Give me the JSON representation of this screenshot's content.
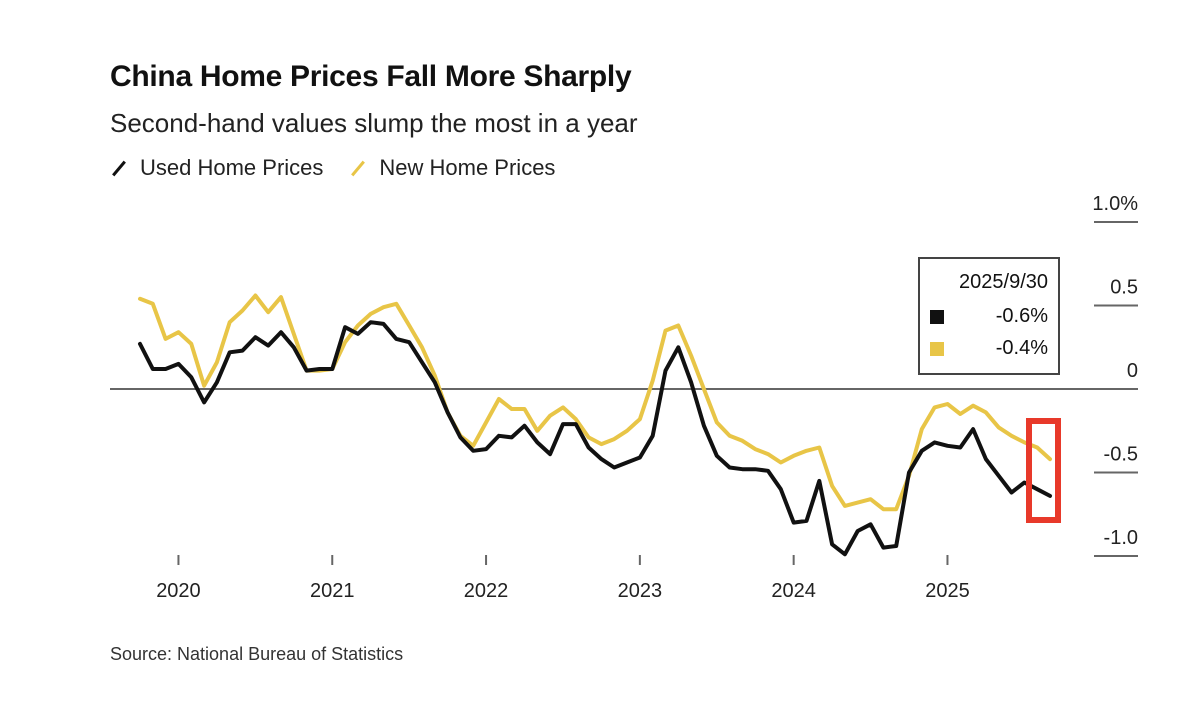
{
  "chart_data": {
    "type": "line",
    "title": "China Home Prices Fall More Sharply",
    "subtitle": "Second-hand values slump the most in a year",
    "source": "Source: National Bureau of Statistics",
    "x_start": "2019-10",
    "x_end": "2025-09",
    "x_frequency": "monthly",
    "x_tick_labels": [
      "2020",
      "2021",
      "2022",
      "2023",
      "2024",
      "2025"
    ],
    "y_tick_labels": [
      "1.0%",
      "0.5",
      "0",
      "-0.5",
      "-1.0"
    ],
    "y_ticks": [
      1.0,
      0.5,
      0,
      -0.5,
      -1.0
    ],
    "ylim": [
      -1.0,
      1.0
    ],
    "y_axis_side": "right",
    "grid": false,
    "legend_placement": "top-left",
    "series": [
      {
        "name": "Used Home Prices",
        "color": "#111111",
        "values": [
          0.27,
          0.12,
          0.12,
          0.15,
          0.07,
          -0.08,
          0.04,
          0.22,
          0.23,
          0.31,
          0.26,
          0.34,
          0.25,
          0.11,
          0.12,
          0.12,
          0.37,
          0.33,
          0.4,
          0.39,
          0.3,
          0.28,
          0.16,
          0.04,
          -0.14,
          -0.29,
          -0.37,
          -0.36,
          -0.28,
          -0.29,
          -0.22,
          -0.32,
          -0.39,
          -0.21,
          -0.21,
          -0.35,
          -0.42,
          -0.47,
          -0.44,
          -0.41,
          -0.28,
          0.11,
          0.25,
          0.04,
          -0.22,
          -0.4,
          -0.47,
          -0.48,
          -0.48,
          -0.49,
          -0.6,
          -0.8,
          -0.79,
          -0.55,
          -0.93,
          -0.99,
          -0.85,
          -0.81,
          -0.95,
          -0.94,
          -0.5,
          -0.37,
          -0.32,
          -0.34,
          -0.35,
          -0.24,
          -0.42,
          -0.52,
          -0.62,
          -0.56,
          -0.6,
          -0.64
        ]
      },
      {
        "name": "New Home Prices",
        "color": "#e8c547",
        "values": [
          0.54,
          0.51,
          0.3,
          0.34,
          0.27,
          0.02,
          0.16,
          0.4,
          0.47,
          0.56,
          0.46,
          0.55,
          0.33,
          0.11,
          0.11,
          0.12,
          0.28,
          0.38,
          0.45,
          0.49,
          0.51,
          0.38,
          0.25,
          0.08,
          -0.14,
          -0.28,
          -0.34,
          -0.2,
          -0.06,
          -0.12,
          -0.12,
          -0.25,
          -0.16,
          -0.11,
          -0.18,
          -0.29,
          -0.33,
          -0.3,
          -0.25,
          -0.18,
          0.05,
          0.35,
          0.38,
          0.2,
          0.0,
          -0.2,
          -0.28,
          -0.31,
          -0.36,
          -0.39,
          -0.44,
          -0.4,
          -0.37,
          -0.35,
          -0.58,
          -0.7,
          -0.68,
          -0.66,
          -0.72,
          -0.72,
          -0.52,
          -0.24,
          -0.11,
          -0.09,
          -0.15,
          -0.1,
          -0.14,
          -0.23,
          -0.28,
          -0.32,
          -0.35,
          -0.42
        ]
      }
    ],
    "tooltip": {
      "date": "2025/9/30",
      "rows": [
        {
          "series": "Used Home Prices",
          "value": "-0.6%",
          "color": "#111111"
        },
        {
          "series": "New Home Prices",
          "value": "-0.4%",
          "color": "#e8c547"
        }
      ]
    },
    "annotation_color": "#e8392a"
  }
}
